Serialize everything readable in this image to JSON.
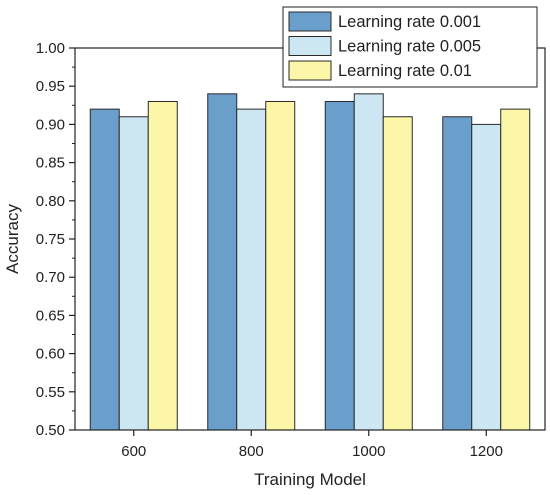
{
  "chart_data": {
    "type": "bar",
    "xlabel": "Training Model",
    "ylabel": "Accuracy",
    "categories": [
      "600",
      "800",
      "1000",
      "1200"
    ],
    "series": [
      {
        "name": "Learning rate 0.001",
        "values": [
          0.92,
          0.94,
          0.93,
          0.91
        ],
        "color": "#6a9fcb"
      },
      {
        "name": "Learning rate 0.005",
        "values": [
          0.91,
          0.92,
          0.94,
          0.9
        ],
        "color": "#cce7f2"
      },
      {
        "name": "Learning rate 0.01",
        "values": [
          0.93,
          0.93,
          0.91,
          0.92
        ],
        "color": "#fbf6a8"
      }
    ],
    "ylim": [
      0.5,
      1.0
    ],
    "yticks": [
      "0.50",
      "0.55",
      "0.60",
      "0.65",
      "0.70",
      "0.75",
      "0.80",
      "0.85",
      "0.90",
      "0.95",
      "1.00"
    ],
    "grid": false,
    "legend_position": "top-right"
  }
}
